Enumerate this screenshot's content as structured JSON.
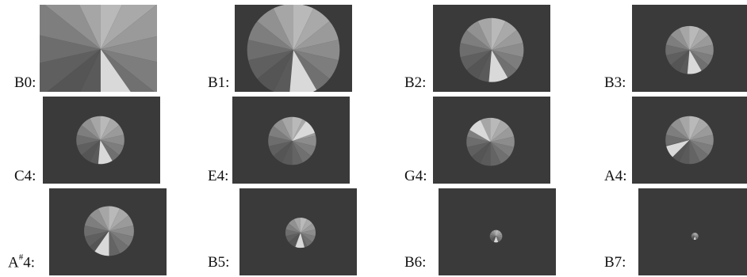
{
  "figure": {
    "background_color": "#3a3a3a",
    "panels": [
      {
        "id": "b0",
        "label": "B0:",
        "note": "",
        "highlight": "pos",
        "hue_light": "#d9d9d9",
        "clip": "full"
      },
      {
        "id": "b1",
        "label": "B1:",
        "note": "",
        "highlight": "pos",
        "hue_light": "#d9d9d9",
        "clip": "round-large"
      },
      {
        "id": "b2",
        "label": "B2:",
        "note": "",
        "highlight": "pos",
        "hue_light": "#d9d9d9",
        "clip": "round"
      },
      {
        "id": "b3",
        "label": "B3:",
        "note": "",
        "highlight": "pos",
        "hue_light": "#d9d9d9",
        "clip": "round"
      },
      {
        "id": "c4",
        "label": "C4:",
        "note": "",
        "highlight": "pos",
        "hue_light": "#d9d9d9",
        "clip": "round"
      },
      {
        "id": "e4",
        "label": "E4:",
        "note": "",
        "highlight": "pos",
        "hue_light": "#d9d9d9",
        "clip": "round"
      },
      {
        "id": "g4",
        "label": "G4:",
        "note": "",
        "highlight": "pos",
        "hue_light": "#d9d9d9",
        "clip": "round"
      },
      {
        "id": "a4",
        "label": "A4:",
        "note": "",
        "highlight": "pos",
        "hue_light": "#d9d9d9",
        "clip": "round"
      },
      {
        "id": "as4",
        "label": "A",
        "note": "#",
        "label_suffix": "4:",
        "highlight": "pos",
        "hue_light": "#d9d9d9",
        "clip": "round"
      },
      {
        "id": "b5",
        "label": "B5:",
        "note": "",
        "highlight": "pos",
        "hue_light": "#d9d9d9",
        "clip": "round"
      },
      {
        "id": "b6",
        "label": "B6:",
        "note": "",
        "highlight": "pos",
        "hue_light": "#d9d9d9",
        "clip": "round"
      },
      {
        "id": "b7",
        "label": "B7:",
        "note": "",
        "highlight": "pos",
        "hue_light": "#d9d9d9",
        "clip": "round"
      }
    ]
  }
}
